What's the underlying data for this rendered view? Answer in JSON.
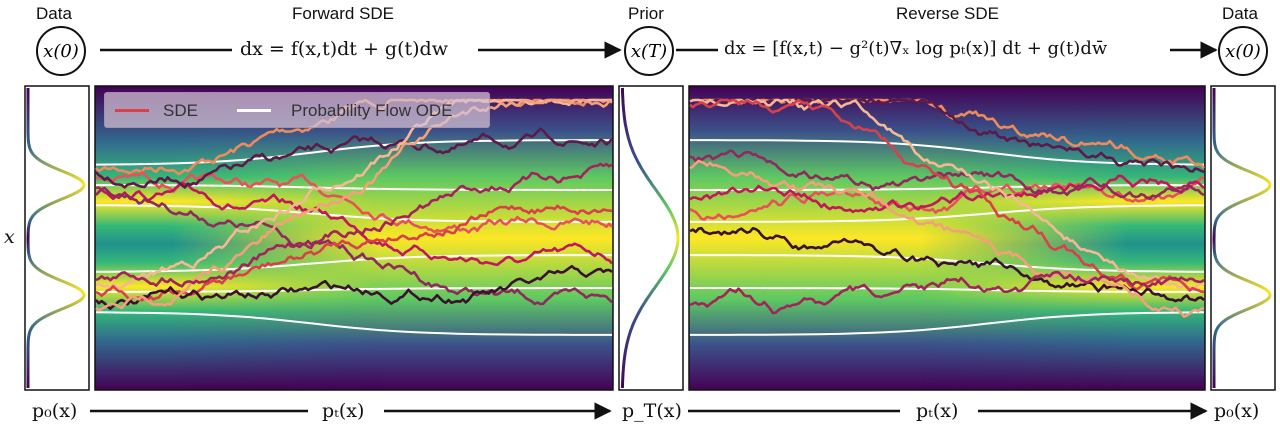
{
  "header": {
    "data_left": "Data",
    "forward_title": "Forward SDE",
    "prior": "Prior",
    "reverse_title": "Reverse SDE",
    "data_right": "Data"
  },
  "nodes": {
    "left": "x(0)",
    "middle": "x(T)",
    "right": "x(0)"
  },
  "equations": {
    "forward": "dx = f(x,t)dt + g(t)dw",
    "reverse": "dx = [f(x,t) − g²(t)∇ₓ log pₜ(x)] dt + g(t)dw̄"
  },
  "axis": {
    "x_label": "x"
  },
  "bottom": {
    "p0_left": "p₀(x)",
    "pt_forward": "pₜ(x)",
    "pT": "p_T(x)",
    "pt_reverse": "pₜ(x)",
    "p0_right": "p₀(x)"
  },
  "legend": {
    "sde": "SDE",
    "ode": "Probability Flow ODE",
    "sde_color": "#d9404a",
    "ode_color": "#ffffff"
  },
  "colors": {
    "line": "#111111",
    "heat_low": "#440154",
    "heat_high": "#fde725"
  }
}
